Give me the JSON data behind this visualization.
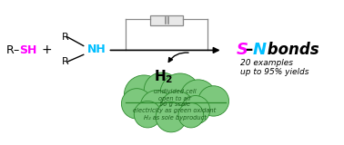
{
  "bg_color": "#ffffff",
  "magenta": "#ff00ff",
  "cyan": "#00bfff",
  "black": "#000000",
  "green_fill": "#7dc87d",
  "green_edge": "#2e8b2e",
  "dark_green_text": "#1a5c1a",
  "gray": "#888888",
  "light_gray": "#e8e8e8",
  "leaf_lines": [
    "undivided cell",
    "open to air",
    "50 g scale",
    "electricity as green oxidant",
    "H₂ as sole byproduct"
  ],
  "examples_line1": "20 examples",
  "examples_line2": "up to 95% yields",
  "figw": 3.78,
  "figh": 1.6,
  "dpi": 100
}
